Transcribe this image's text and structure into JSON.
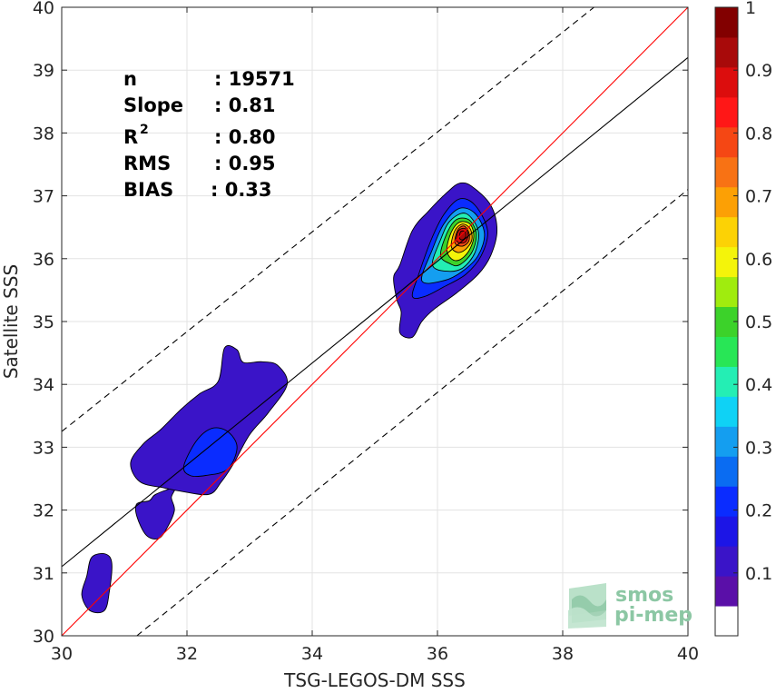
{
  "chart_data": {
    "type": "heatmap",
    "subtype": "density-contour-scatter",
    "title": "",
    "xlabel": "TSG-LEGOS-DM SSS",
    "ylabel": "Satellite SSS",
    "xlim": [
      30,
      40
    ],
    "ylim": [
      30,
      40
    ],
    "xticks": [
      30,
      32,
      34,
      36,
      38,
      40
    ],
    "yticks": [
      30,
      31,
      32,
      33,
      34,
      35,
      36,
      37,
      38,
      39,
      40
    ],
    "grid": true,
    "colorbar": {
      "range": [
        0,
        1
      ],
      "tick_labels": [
        "0.1",
        "0.2",
        "0.3",
        "0.4",
        "0.5",
        "0.6",
        "0.7",
        "0.8",
        "0.9",
        "1"
      ],
      "tick_values": [
        0.1,
        0.2,
        0.3,
        0.4,
        0.5,
        0.6,
        0.7,
        0.8,
        0.9,
        1.0
      ],
      "colors": [
        "#ffffff",
        "#5a0fa8",
        "#3a14c8",
        "#1c15e6",
        "#0a2cff",
        "#0a6cf2",
        "#149ef0",
        "#0fd2f5",
        "#24eeb4",
        "#28e656",
        "#3cd22a",
        "#a0ec0e",
        "#f4f40a",
        "#fcd205",
        "#fca005",
        "#f87214",
        "#f54714",
        "#ff1717",
        "#dc0d0d",
        "#a80a0a",
        "#820000"
      ]
    },
    "stats": {
      "n_label": "n",
      "n_value": ": 19571",
      "slope_label": "Slope",
      "slope_value": ": 0.81",
      "r2_label": "R",
      "r2_sup": "2",
      "r2_value": ": 0.80",
      "rms_label": "RMS",
      "rms_value": ": 0.95",
      "bias_label": "BIAS",
      "bias_value": ": 0.33"
    },
    "lines": [
      {
        "kind": "one-to-one",
        "color": "#ff0000",
        "style": "solid",
        "x": [
          30,
          40
        ],
        "y": [
          30,
          40
        ]
      },
      {
        "kind": "regression-fit",
        "color": "#000000",
        "style": "solid",
        "x": [
          30,
          40
        ],
        "y": [
          31.1,
          39.2
        ]
      },
      {
        "kind": "upper-bound",
        "color": "#000000",
        "style": "dashed",
        "x": [
          30,
          38.5
        ],
        "y": [
          33.25,
          40
        ]
      },
      {
        "kind": "lower-bound",
        "color": "#000000",
        "style": "dashed",
        "x": [
          31.2,
          40
        ],
        "y": [
          30,
          37.1
        ]
      }
    ],
    "density_regions": [
      {
        "level": 0.1,
        "points": [
          [
            30.45,
            30.4
          ],
          [
            30.32,
            30.65
          ],
          [
            30.4,
            30.95
          ],
          [
            30.48,
            31.25
          ],
          [
            30.7,
            31.3
          ],
          [
            30.8,
            31.15
          ],
          [
            30.76,
            30.7
          ],
          [
            30.68,
            30.4
          ]
        ]
      },
      {
        "level": 0.1,
        "points": [
          [
            31.2,
            32.1
          ],
          [
            31.4,
            32.15
          ],
          [
            31.5,
            32.25
          ],
          [
            31.8,
            32.35
          ],
          [
            31.75,
            32.2
          ],
          [
            31.8,
            32.0
          ],
          [
            31.7,
            31.75
          ],
          [
            31.55,
            31.55
          ],
          [
            31.35,
            31.6
          ],
          [
            31.2,
            31.9
          ]
        ]
      },
      {
        "level": 0.1,
        "points": [
          [
            31.1,
            32.75
          ],
          [
            31.3,
            33.05
          ],
          [
            31.58,
            33.28
          ],
          [
            31.9,
            33.6
          ],
          [
            32.2,
            33.85
          ],
          [
            32.5,
            34.05
          ],
          [
            32.6,
            34.58
          ],
          [
            32.8,
            34.55
          ],
          [
            32.9,
            34.35
          ],
          [
            33.2,
            34.36
          ],
          [
            33.45,
            34.3
          ],
          [
            33.6,
            34.0
          ],
          [
            33.3,
            33.55
          ],
          [
            33.0,
            33.2
          ],
          [
            32.75,
            32.75
          ],
          [
            32.55,
            32.45
          ],
          [
            32.35,
            32.25
          ],
          [
            31.9,
            32.3
          ],
          [
            31.65,
            32.35
          ],
          [
            31.25,
            32.45
          ]
        ]
      },
      {
        "level": 0.1,
        "points": [
          [
            35.3,
            35.7
          ],
          [
            35.4,
            35.9
          ],
          [
            35.6,
            36.45
          ],
          [
            35.85,
            36.75
          ],
          [
            36.15,
            37.05
          ],
          [
            36.35,
            37.2
          ],
          [
            36.55,
            37.15
          ],
          [
            36.85,
            36.85
          ],
          [
            36.95,
            36.45
          ],
          [
            36.85,
            36.05
          ],
          [
            36.65,
            35.75
          ],
          [
            36.3,
            35.45
          ],
          [
            35.95,
            35.2
          ],
          [
            35.75,
            35.0
          ],
          [
            35.6,
            34.75
          ],
          [
            35.4,
            34.82
          ],
          [
            35.42,
            35.15
          ],
          [
            35.35,
            35.35
          ]
        ]
      },
      {
        "level": 0.2,
        "points": [
          [
            31.95,
            32.7
          ],
          [
            32.15,
            33.1
          ],
          [
            32.4,
            33.3
          ],
          [
            32.65,
            33.25
          ],
          [
            32.8,
            33.0
          ],
          [
            32.65,
            32.65
          ],
          [
            32.3,
            32.55
          ],
          [
            32.05,
            32.55
          ]
        ]
      },
      {
        "level": 0.2,
        "points": [
          [
            35.6,
            35.4
          ],
          [
            35.7,
            35.75
          ],
          [
            35.9,
            36.3
          ],
          [
            36.1,
            36.7
          ],
          [
            36.35,
            36.95
          ],
          [
            36.6,
            36.85
          ],
          [
            36.8,
            36.45
          ],
          [
            36.7,
            36.05
          ],
          [
            36.45,
            35.75
          ],
          [
            36.1,
            35.55
          ],
          [
            35.8,
            35.4
          ]
        ]
      },
      {
        "level": 0.3,
        "points": [
          [
            35.75,
            35.65
          ],
          [
            35.92,
            36.15
          ],
          [
            36.1,
            36.55
          ],
          [
            36.35,
            36.8
          ],
          [
            36.6,
            36.72
          ],
          [
            36.75,
            36.4
          ],
          [
            36.65,
            36.05
          ],
          [
            36.4,
            35.8
          ],
          [
            36.1,
            35.65
          ]
        ]
      },
      {
        "level": 0.4,
        "points": [
          [
            35.92,
            35.9
          ],
          [
            36.05,
            36.3
          ],
          [
            36.2,
            36.6
          ],
          [
            36.45,
            36.72
          ],
          [
            36.65,
            36.45
          ],
          [
            36.6,
            36.1
          ],
          [
            36.4,
            35.85
          ],
          [
            36.15,
            35.8
          ]
        ]
      },
      {
        "level": 0.5,
        "points": [
          [
            36.05,
            36.05
          ],
          [
            36.15,
            36.4
          ],
          [
            36.3,
            36.62
          ],
          [
            36.5,
            36.62
          ],
          [
            36.62,
            36.4
          ],
          [
            36.55,
            36.1
          ],
          [
            36.35,
            35.9
          ],
          [
            36.2,
            35.92
          ]
        ]
      },
      {
        "level": 0.6,
        "points": [
          [
            36.15,
            36.15
          ],
          [
            36.22,
            36.42
          ],
          [
            36.35,
            36.58
          ],
          [
            36.52,
            36.55
          ],
          [
            36.58,
            36.35
          ],
          [
            36.5,
            36.12
          ],
          [
            36.35,
            35.98
          ],
          [
            36.22,
            36.0
          ]
        ]
      },
      {
        "level": 0.7,
        "points": [
          [
            36.22,
            36.2
          ],
          [
            36.28,
            36.45
          ],
          [
            36.4,
            36.55
          ],
          [
            36.52,
            36.48
          ],
          [
            36.55,
            36.3
          ],
          [
            36.45,
            36.15
          ],
          [
            36.32,
            36.1
          ]
        ]
      },
      {
        "level": 0.8,
        "points": [
          [
            36.28,
            36.25
          ],
          [
            36.32,
            36.45
          ],
          [
            36.42,
            36.52
          ],
          [
            36.5,
            36.42
          ],
          [
            36.5,
            36.28
          ],
          [
            36.4,
            36.2
          ]
        ]
      },
      {
        "level": 0.9,
        "points": [
          [
            36.3,
            36.3
          ],
          [
            36.34,
            36.45
          ],
          [
            36.44,
            36.48
          ],
          [
            36.49,
            36.38
          ],
          [
            36.45,
            36.27
          ],
          [
            36.36,
            36.25
          ]
        ]
      },
      {
        "level": 0.95,
        "points": [
          [
            36.35,
            36.33
          ],
          [
            36.37,
            36.43
          ],
          [
            36.44,
            36.43
          ],
          [
            36.45,
            36.35
          ],
          [
            36.4,
            36.3
          ]
        ]
      }
    ]
  },
  "logo": {
    "line1": "smos",
    "line2": "pi-mep"
  }
}
